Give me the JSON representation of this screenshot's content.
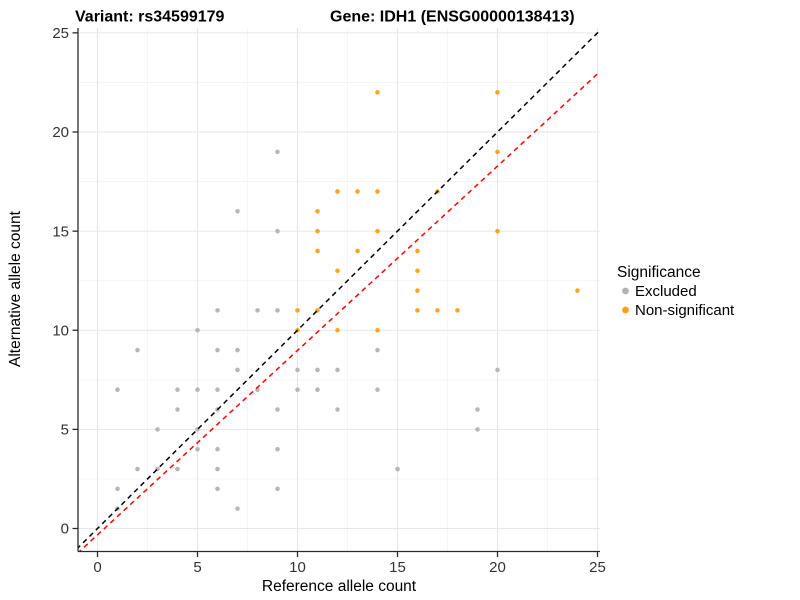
{
  "title": {
    "part1": "Variant: rs34599179",
    "part2": "Gene: IDH1 (ENSG00000138413)"
  },
  "chart_data": {
    "type": "scatter",
    "xlabel": "Reference allele count",
    "ylabel": "Alternative allele count",
    "xlim": [
      -1,
      25.1
    ],
    "ylim": [
      -1.16,
      25.25
    ],
    "x_ticks": [
      0,
      5,
      10,
      15,
      20,
      25
    ],
    "y_ticks": [
      0,
      5,
      10,
      15,
      20,
      25
    ],
    "minor_grid_ticks": [
      2.5,
      7.5,
      12.5,
      17.5,
      22.5
    ],
    "grid": "major+minor",
    "colors": {
      "excluded": "#B3B3B3",
      "non_significant": "#FBA019",
      "identity_line": "#000000",
      "fit_line": "#FF0000",
      "grid_major": "#E6E6E6",
      "grid_minor": "#F3F3F3",
      "axis": "#2B2B2B"
    },
    "legend": {
      "title": "Significance",
      "position": "right",
      "items": [
        {
          "label": "Excluded",
          "color": "#B3B3B3"
        },
        {
          "label": "Non-significant",
          "color": "#FBA019"
        }
      ]
    },
    "series": [
      {
        "name": "Excluded",
        "color": "#B3B3B3",
        "points": [
          [
            1,
            1
          ],
          [
            1,
            2
          ],
          [
            1,
            7
          ],
          [
            2,
            3
          ],
          [
            2,
            9
          ],
          [
            3,
            3
          ],
          [
            3,
            5
          ],
          [
            4,
            3
          ],
          [
            4,
            6
          ],
          [
            4,
            7
          ],
          [
            5,
            4
          ],
          [
            5,
            5
          ],
          [
            5,
            7
          ],
          [
            5,
            10
          ],
          [
            6,
            2
          ],
          [
            6,
            3
          ],
          [
            6,
            4
          ],
          [
            6,
            6
          ],
          [
            6,
            7
          ],
          [
            6,
            9
          ],
          [
            6,
            11
          ],
          [
            7,
            1
          ],
          [
            7,
            8
          ],
          [
            7,
            9
          ],
          [
            7,
            16
          ],
          [
            8,
            7
          ],
          [
            8,
            11
          ],
          [
            9,
            2
          ],
          [
            9,
            4
          ],
          [
            9,
            6
          ],
          [
            9,
            11
          ],
          [
            9,
            15
          ],
          [
            9,
            19
          ],
          [
            10,
            7
          ],
          [
            10,
            8
          ],
          [
            11,
            7
          ],
          [
            11,
            8
          ],
          [
            12,
            6
          ],
          [
            12,
            8
          ],
          [
            14,
            7
          ],
          [
            14,
            9
          ],
          [
            15,
            3
          ],
          [
            19,
            5
          ],
          [
            19,
            6
          ],
          [
            20,
            8
          ]
        ]
      },
      {
        "name": "Non-significant",
        "color": "#FBA019",
        "points": [
          [
            10,
            10
          ],
          [
            10,
            11
          ],
          [
            11,
            11
          ],
          [
            11,
            14
          ],
          [
            11,
            15
          ],
          [
            11,
            16
          ],
          [
            12,
            10
          ],
          [
            12,
            13
          ],
          [
            12,
            17
          ],
          [
            13,
            14
          ],
          [
            13,
            17
          ],
          [
            14,
            10
          ],
          [
            14,
            15
          ],
          [
            14,
            17
          ],
          [
            14,
            22
          ],
          [
            16,
            11
          ],
          [
            16,
            12
          ],
          [
            16,
            13
          ],
          [
            16,
            14
          ],
          [
            17,
            11
          ],
          [
            17,
            17
          ],
          [
            18,
            11
          ],
          [
            20,
            15
          ],
          [
            20,
            19
          ],
          [
            20,
            22
          ],
          [
            24,
            12
          ]
        ]
      }
    ],
    "lines": [
      {
        "name": "identity",
        "color": "#000000",
        "dashed": true,
        "slope": 1,
        "intercept": 0
      },
      {
        "name": "fit",
        "color": "#FF0000",
        "dashed": true,
        "slope": 0.93,
        "intercept": -0.32
      }
    ]
  }
}
